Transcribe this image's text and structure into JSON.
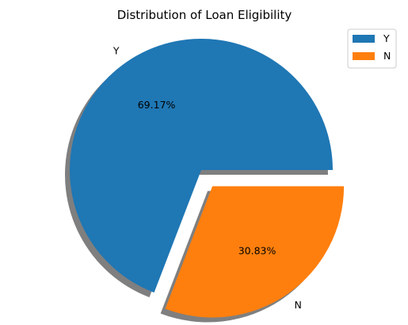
{
  "chart_data": {
    "type": "pie",
    "title": "Distribution of Loan Eligibility",
    "slices": [
      {
        "label": "Y",
        "value": 69.17,
        "pct_label": "69.17%",
        "color": "#1f77b4"
      },
      {
        "label": "N",
        "value": 30.83,
        "pct_label": "30.83%",
        "color": "#ff7f0e"
      }
    ],
    "legend": {
      "placement": "top-right",
      "entries": [
        "Y",
        "N"
      ]
    },
    "explode": [
      0,
      0.03
    ],
    "shadow": true
  }
}
